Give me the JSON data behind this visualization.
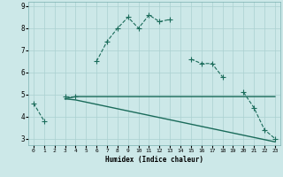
{
  "xlabel": "Humidex (Indice chaleur)",
  "x": [
    0,
    1,
    2,
    3,
    4,
    5,
    6,
    7,
    8,
    9,
    10,
    11,
    12,
    13,
    14,
    15,
    16,
    17,
    18,
    19,
    20,
    21,
    22,
    23
  ],
  "line1": [
    4.6,
    3.8,
    null,
    4.9,
    4.9,
    null,
    6.5,
    7.4,
    8.0,
    8.5,
    8.0,
    8.6,
    8.3,
    8.4,
    null,
    6.6,
    6.4,
    6.4,
    5.8,
    null,
    5.1,
    4.4,
    3.4,
    3.0
  ],
  "line2": [
    4.6,
    null,
    null,
    4.8,
    4.9,
    4.9,
    4.9,
    4.9,
    4.9,
    4.9,
    4.9,
    4.9,
    4.9,
    4.9,
    4.9,
    4.9,
    4.9,
    4.9,
    4.9,
    4.9,
    4.9,
    4.9,
    4.9,
    4.9
  ],
  "line3": [
    4.6,
    null,
    null,
    4.8,
    4.75,
    4.65,
    4.55,
    4.45,
    4.35,
    4.25,
    4.15,
    4.05,
    3.95,
    3.85,
    3.75,
    3.65,
    3.55,
    3.45,
    3.35,
    3.25,
    3.15,
    3.05,
    2.95,
    2.85
  ],
  "line_color": "#1a6b5a",
  "bg_color": "#cce8e8",
  "grid_color": "#aad0d0",
  "ylim": [
    2.7,
    9.2
  ],
  "xlim": [
    -0.5,
    23.5
  ]
}
